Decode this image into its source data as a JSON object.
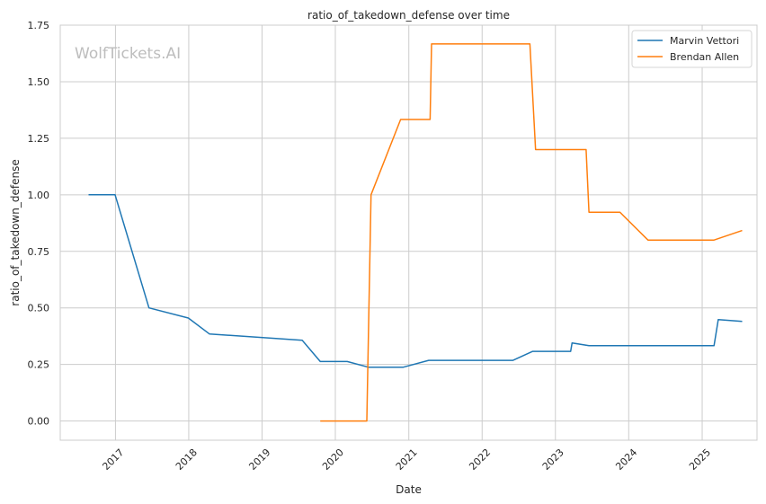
{
  "watermark": "WolfTickets.AI",
  "chart_data": {
    "type": "line",
    "title": "ratio_of_takedown_defense over time",
    "xlabel": "Date",
    "ylabel": "ratio_of_takedown_defense",
    "x_type": "date",
    "xlim": [
      "2016-04-01",
      "2025-10-01"
    ],
    "ylim": [
      -0.085,
      1.75
    ],
    "x_ticks": [
      {
        "label": "2017",
        "value": "2017-01-01"
      },
      {
        "label": "2018",
        "value": "2018-01-01"
      },
      {
        "label": "2019",
        "value": "2019-01-01"
      },
      {
        "label": "2020",
        "value": "2020-01-01"
      },
      {
        "label": "2021",
        "value": "2021-01-01"
      },
      {
        "label": "2022",
        "value": "2022-01-01"
      },
      {
        "label": "2023",
        "value": "2023-01-01"
      },
      {
        "label": "2024",
        "value": "2024-01-01"
      },
      {
        "label": "2025",
        "value": "2025-01-01"
      }
    ],
    "y_ticks": [
      {
        "label": "0.00",
        "value": 0
      },
      {
        "label": "0.25",
        "value": 0.25
      },
      {
        "label": "0.50",
        "value": 0.5
      },
      {
        "label": "0.75",
        "value": 0.75
      },
      {
        "label": "1.00",
        "value": 1.0
      },
      {
        "label": "1.25",
        "value": 1.25
      },
      {
        "label": "1.50",
        "value": 1.5
      },
      {
        "label": "1.75",
        "value": 1.75
      }
    ],
    "grid": true,
    "legend_position": "top-right",
    "series": [
      {
        "name": "Marvin Vettori",
        "color": "#1f77b4",
        "points": [
          {
            "x": "2016-08-20",
            "y": 1.0
          },
          {
            "x": "2016-12-30",
            "y": 1.0
          },
          {
            "x": "2017-06-17",
            "y": 0.5
          },
          {
            "x": "2017-12-30",
            "y": 0.455
          },
          {
            "x": "2018-04-14",
            "y": 0.385
          },
          {
            "x": "2019-07-20",
            "y": 0.357
          },
          {
            "x": "2019-10-18",
            "y": 0.263
          },
          {
            "x": "2020-02-29",
            "y": 0.263
          },
          {
            "x": "2020-06-13",
            "y": 0.238
          },
          {
            "x": "2020-12-05",
            "y": 0.238
          },
          {
            "x": "2021-04-10",
            "y": 0.268
          },
          {
            "x": "2022-06-04",
            "y": 0.268
          },
          {
            "x": "2022-09-10",
            "y": 0.308
          },
          {
            "x": "2023-03-18",
            "y": 0.308
          },
          {
            "x": "2023-03-25",
            "y": 0.345
          },
          {
            "x": "2023-06-17",
            "y": 0.333
          },
          {
            "x": "2025-03-01",
            "y": 0.333
          },
          {
            "x": "2025-03-22",
            "y": 0.448
          },
          {
            "x": "2025-07-19",
            "y": 0.44
          }
        ]
      },
      {
        "name": "Brendan Allen",
        "color": "#ff7f0e",
        "points": [
          {
            "x": "2019-10-18",
            "y": 0.0
          },
          {
            "x": "2020-06-06",
            "y": 0.0
          },
          {
            "x": "2020-06-27",
            "y": 1.0
          },
          {
            "x": "2020-11-21",
            "y": 1.333
          },
          {
            "x": "2021-04-17",
            "y": 1.333
          },
          {
            "x": "2021-04-24",
            "y": 1.667
          },
          {
            "x": "2022-08-27",
            "y": 1.667
          },
          {
            "x": "2022-09-24",
            "y": 1.2
          },
          {
            "x": "2023-06-03",
            "y": 1.2
          },
          {
            "x": "2023-06-17",
            "y": 0.923
          },
          {
            "x": "2023-11-18",
            "y": 0.923
          },
          {
            "x": "2024-04-06",
            "y": 0.8
          },
          {
            "x": "2025-03-01",
            "y": 0.8
          },
          {
            "x": "2025-07-19",
            "y": 0.842
          }
        ]
      }
    ]
  }
}
